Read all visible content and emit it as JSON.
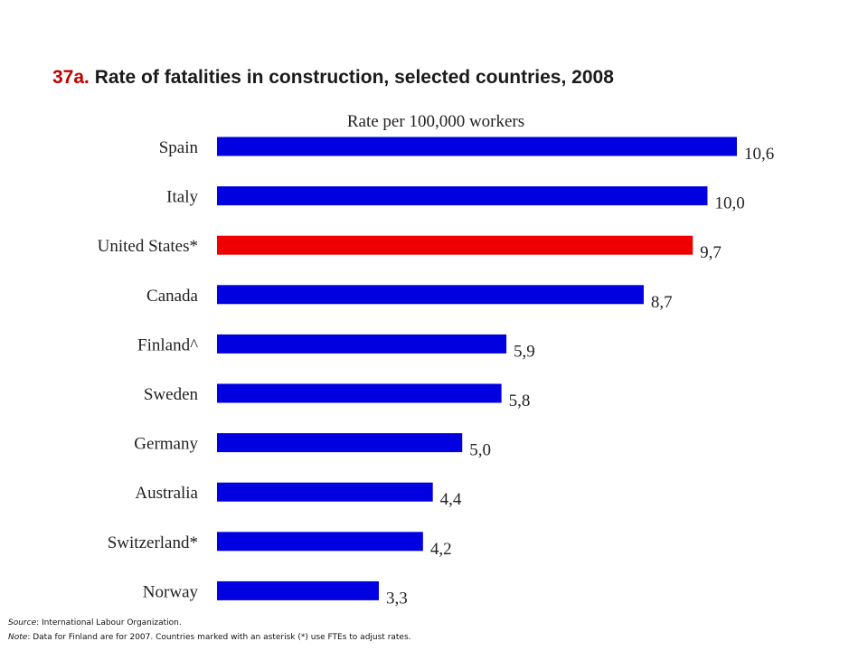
{
  "header": {
    "title_number": "37a.",
    "title_text": " Rate of fatalities in construction, selected countries, 2008"
  },
  "chart_data": {
    "type": "bar",
    "orientation": "horizontal",
    "subtitle": "Rate per 100,000 workers",
    "categories": [
      "Spain",
      "Italy",
      "United States*",
      "Canada",
      "Finland^",
      "Sweden",
      "Germany",
      "Australia",
      "Switzerland*",
      "Norway"
    ],
    "values": [
      10.6,
      10.0,
      9.7,
      8.7,
      5.9,
      5.8,
      5.0,
      4.4,
      4.2,
      3.3
    ],
    "value_labels": [
      "10,6",
      "10,0",
      "9,7",
      "8,7",
      "5,9",
      "5,8",
      "5,0",
      "4,4",
      "4,2",
      "3,3"
    ],
    "colors": [
      "#0000e0",
      "#0000e0",
      "#ee0000",
      "#0000e0",
      "#0000e0",
      "#0000e0",
      "#0000e0",
      "#0000e0",
      "#0000e0",
      "#0000e0"
    ],
    "xlim": [
      0,
      10.6
    ],
    "grid": false,
    "legend": "none"
  },
  "footer": {
    "source_label": "Source",
    "source_text": ": International Labour Organization.",
    "note_label": "Note",
    "note_text": ": Data for Finland are for 2007. Countries marked with an asterisk (*) use FTEs to adjust rates."
  }
}
